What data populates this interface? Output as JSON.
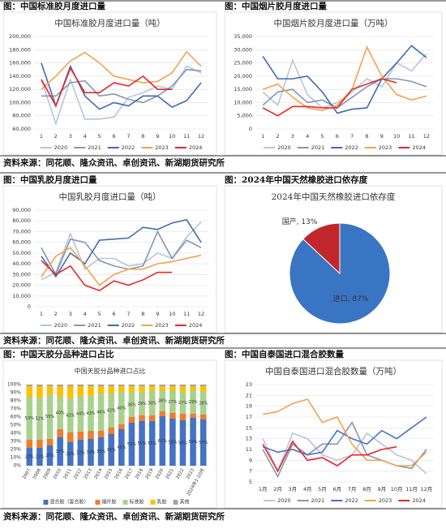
{
  "captions": [
    "图：中国标准胶月度进口量",
    "图：中国烟片胶月度进口量",
    "图：中国乳胶月度进口量",
    "图：2024年中国天然橡胶进口依存度",
    "图：中国天胶分品种进口占比",
    "图：中国自泰国进口混合胶数量"
  ],
  "sources": [
    "资料来源：同花顺、隆众资讯、卓创资讯、新湖期货研究所",
    "资料来源：同花顺、隆众资讯、卓创资讯、新湖期货研究所",
    "资料来源：同花顺、隆众资讯、卓创资讯、新湖期货研究所"
  ],
  "chart_data": [
    {
      "type": "line",
      "title": "中国标准胶月度进口量（吨）",
      "categories": [
        "1",
        "2",
        "3",
        "4",
        "5",
        "6",
        "7",
        "8",
        "9",
        "10",
        "11",
        "12"
      ],
      "ylim": [
        60000,
        200000
      ],
      "yticks": [
        {
          "value": 60000,
          "label": "60,000"
        },
        {
          "value": 80000,
          "label": "80,000"
        },
        {
          "value": 100000,
          "label": "100,000"
        },
        {
          "value": 120000,
          "label": "120,000"
        },
        {
          "value": 140000,
          "label": "140,000"
        },
        {
          "value": 160000,
          "label": "160,000"
        },
        {
          "value": 180000,
          "label": "180,000"
        },
        {
          "value": 200000,
          "label": "200,000"
        }
      ],
      "grid": true,
      "legend": "bottom",
      "series": [
        {
          "name": "2020",
          "color": "#b7c5dc",
          "values": [
            135000,
            68000,
            135000,
            75000,
            75000,
            78000,
            108000,
            115000,
            125000,
            120000,
            155000,
            145000
          ]
        },
        {
          "name": "2021",
          "color": "#8497b0",
          "values": [
            110000,
            110000,
            130000,
            133000,
            110000,
            113000,
            105000,
            100000,
            110000,
            125000,
            150000,
            148000
          ]
        },
        {
          "name": "2022",
          "color": "#3f6cb0",
          "values": [
            160000,
            95000,
            155000,
            110000,
            90000,
            100000,
            95000,
            110000,
            110000,
            93000,
            103000,
            130000
          ]
        },
        {
          "name": "2023",
          "color": "#f4a14d",
          "values": [
            120000,
            140000,
            163000,
            176000,
            160000,
            140000,
            135000,
            130000,
            132000,
            145000,
            177000,
            155000
          ]
        },
        {
          "name": "2024",
          "color": "#e8262a",
          "values": [
            135000,
            95000,
            152000,
            115000,
            115000,
            130000,
            125000,
            140000,
            120000,
            120000,
            null,
            null
          ]
        }
      ]
    },
    {
      "type": "line",
      "title": "中国烟片胶月度进口量（万吨）",
      "categories": [
        "1",
        "2",
        "3",
        "4",
        "5",
        "6",
        "7",
        "8",
        "9",
        "10",
        "11",
        "12"
      ],
      "ylim": [
        0,
        35000
      ],
      "yticks": [
        0,
        {
          "value": 5000,
          "label": "5,000"
        },
        {
          "value": 10000,
          "label": "10,000"
        },
        {
          "value": 15000,
          "label": "15,000"
        },
        {
          "value": 20000,
          "label": "20,000"
        },
        {
          "value": 25000,
          "label": "25,000"
        },
        {
          "value": 30000,
          "label": "30,000"
        },
        {
          "value": 35000,
          "label": "35,000"
        }
      ],
      "grid": true,
      "legend": "bottom",
      "series": [
        {
          "name": "2020",
          "color": "#b7c5dc",
          "values": [
            14000,
            9000,
            26000,
            13000,
            8000,
            10000,
            14000,
            19000,
            16000,
            25000,
            22000,
            28500
          ]
        },
        {
          "name": "2021",
          "color": "#8497b0",
          "values": [
            9000,
            14000,
            15000,
            10000,
            11000,
            8000,
            12000,
            16000,
            19000,
            19000,
            18000,
            16000
          ]
        },
        {
          "name": "2022",
          "color": "#3f6cb0",
          "values": [
            27500,
            19000,
            19000,
            20000,
            14000,
            6000,
            7500,
            8000,
            19000,
            25000,
            31500,
            27000
          ]
        },
        {
          "name": "2023",
          "color": "#f4a14d",
          "values": [
            15000,
            17000,
            12000,
            8000,
            7000,
            9000,
            15000,
            31000,
            20000,
            13000,
            11000,
            12500
          ]
        },
        {
          "name": "2024",
          "color": "#e8262a",
          "values": [
            8000,
            5000,
            8500,
            8500,
            8000,
            8000,
            15000,
            17000,
            19000,
            17500,
            null,
            null
          ]
        }
      ]
    },
    {
      "type": "line",
      "title": "中国乳胶月度进口量（吨）",
      "categories": [
        "1",
        "2",
        "3",
        "4",
        "5",
        "6",
        "7",
        "8",
        "9",
        "10",
        "11",
        "12"
      ],
      "ylim": [
        0,
        90000
      ],
      "yticks": [
        0,
        {
          "value": 10000,
          "label": "10,000"
        },
        {
          "value": 20000,
          "label": "20,000"
        },
        {
          "value": 30000,
          "label": "30,000"
        },
        {
          "value": 40000,
          "label": "40,000"
        },
        {
          "value": 50000,
          "label": "50,000"
        },
        {
          "value": 60000,
          "label": "60,000"
        },
        {
          "value": 70000,
          "label": "70,000"
        },
        {
          "value": 80000,
          "label": "80,000"
        },
        {
          "value": 90000,
          "label": "90,000"
        }
      ],
      "grid": true,
      "legend": "bottom",
      "series": [
        {
          "name": "2020",
          "color": "#b7c5dc",
          "values": [
            25000,
            32000,
            68000,
            35000,
            45000,
            45000,
            38000,
            40000,
            50000,
            45000,
            65000,
            79000
          ]
        },
        {
          "name": "2021",
          "color": "#8497b0",
          "values": [
            55000,
            30000,
            63000,
            60000,
            43000,
            38000,
            35000,
            38000,
            70000,
            45000,
            62000,
            55000
          ]
        },
        {
          "name": "2022",
          "color": "#3f6cb0",
          "values": [
            47000,
            28000,
            50000,
            40000,
            62000,
            63000,
            64000,
            74000,
            72000,
            78000,
            81000,
            60000
          ]
        },
        {
          "name": "2023",
          "color": "#f4a14d",
          "values": [
            28000,
            47000,
            55000,
            38000,
            20000,
            30000,
            35000,
            35000,
            40000,
            42000,
            45000,
            48000
          ]
        },
        {
          "name": "2024",
          "color": "#e8262a",
          "values": [
            43000,
            30000,
            38000,
            20000,
            15000,
            24000,
            20000,
            25000,
            32000,
            32000,
            null,
            null
          ]
        }
      ]
    },
    {
      "type": "pie",
      "title": "2024年中国天然橡胶进口依存度",
      "categories": [
        "进口",
        "国产"
      ],
      "values": [
        87,
        13
      ],
      "value_labels": [
        "进口, 87%",
        "国产, 13%"
      ],
      "colors": [
        "#3a75c4",
        "#c0262b"
      ]
    },
    {
      "type": "bar",
      "stacked": true,
      "title": "中国天胶分品种进口占比",
      "categories": [
        "2007",
        "2008",
        "2009",
        "2010",
        "2011",
        "2012",
        "2013",
        "2014",
        "2015",
        "2016",
        "2017",
        "2018",
        "2019",
        "2020",
        "2021",
        "2022",
        "2023",
        "2024年1-10月"
      ],
      "ylim": [
        0,
        100
      ],
      "yticks": [
        {
          "value": 0,
          "label": "0%"
        },
        {
          "value": 10,
          "label": "10%"
        },
        {
          "value": 20,
          "label": "20%"
        },
        {
          "value": 30,
          "label": "30%"
        },
        {
          "value": 40,
          "label": "40%"
        },
        {
          "value": 50,
          "label": "50%"
        },
        {
          "value": 60,
          "label": "60%"
        },
        {
          "value": 70,
          "label": "70%"
        },
        {
          "value": 80,
          "label": "80%"
        },
        {
          "value": 90,
          "label": "90%"
        },
        {
          "value": 100,
          "label": "100%"
        }
      ],
      "grid": true,
      "legend": "bottom",
      "series": [
        {
          "name": "混合胶（复合胶）",
          "color": "#4472c4",
          "values": [
            22,
            22,
            25,
            35,
            29,
            32,
            33,
            35,
            39,
            45,
            53,
            55,
            55,
            61,
            58,
            56,
            59,
            57
          ],
          "value_labels": [
            "22%",
            "22%",
            "25%",
            "35%",
            "29%",
            "32%",
            "33%",
            "35%",
            "39%",
            "45%",
            "53%",
            "55%",
            "55%",
            "61%",
            "58%",
            "56%",
            "59%",
            "57%"
          ]
        },
        {
          "name": "烟片胶",
          "color": "#ed7d31",
          "values": [
            10,
            10,
            8,
            10,
            12,
            10,
            10,
            8,
            8,
            6,
            7,
            7,
            7,
            6,
            7,
            8,
            5,
            6
          ]
        },
        {
          "name": "标准胶",
          "color": "#a9d18e",
          "values": [
            53,
            52,
            55,
            40,
            42,
            44,
            43,
            46,
            42,
            40,
            30,
            29,
            30,
            26,
            27,
            27,
            29,
            28
          ],
          "value_labels": [
            "53%",
            "52%",
            "55%",
            "40%",
            "42%",
            "44%",
            "43%",
            "46%",
            "42%",
            "40%",
            "30%",
            "29%",
            "30%",
            "26%",
            "27%",
            "27%",
            "29%",
            "28%"
          ]
        },
        {
          "name": "乳胶",
          "color": "#ffc000",
          "values": [
            13,
            14,
            10,
            13,
            15,
            12,
            12,
            9,
            9,
            7,
            8,
            7,
            6,
            5,
            6,
            7,
            5,
            7
          ]
        },
        {
          "name": "其他",
          "color": "#a5a5a5",
          "values": [
            2,
            2,
            2,
            2,
            2,
            2,
            2,
            2,
            2,
            2,
            2,
            2,
            2,
            2,
            2,
            2,
            2,
            2
          ]
        }
      ]
    },
    {
      "type": "line",
      "title": "中国自泰国进口混合胶数量（万吨）",
      "categories": [
        "1月",
        "2月",
        "3月",
        "4月",
        "5月",
        "6月",
        "7月",
        "8月",
        "9月",
        "10月",
        "11月",
        "12月"
      ],
      "ylim": [
        5,
        23
      ],
      "yticks": [
        5,
        7,
        9,
        11,
        13,
        15,
        17,
        19,
        21,
        23
      ],
      "grid": true,
      "legend": "bottom",
      "series": [
        {
          "name": "2020",
          "color": "#b7c5dc",
          "values": [
            13,
            7,
            14,
            13,
            10,
            9,
            10,
            14,
            12,
            10,
            9,
            6.5
          ]
        },
        {
          "name": "2021",
          "color": "#8497b0",
          "values": [
            11,
            6,
            12,
            10,
            12,
            12,
            16,
            10,
            9,
            8,
            7.5,
            11
          ]
        },
        {
          "name": "2022",
          "color": "#4472c4",
          "values": [
            11.5,
            10.5,
            11,
            10,
            10.5,
            14.5,
            13,
            12,
            14.5,
            13,
            15,
            17
          ]
        },
        {
          "name": "2023",
          "color": "#f4a14d",
          "values": [
            17.5,
            18,
            19.5,
            20.3,
            16,
            17,
            12,
            9,
            9,
            8,
            8,
            10.5
          ]
        },
        {
          "name": "2024",
          "color": "#e8262a",
          "values": [
            12,
            7,
            12.5,
            9,
            9.5,
            8,
            10,
            10,
            11,
            11.5,
            null,
            null
          ]
        }
      ]
    }
  ]
}
